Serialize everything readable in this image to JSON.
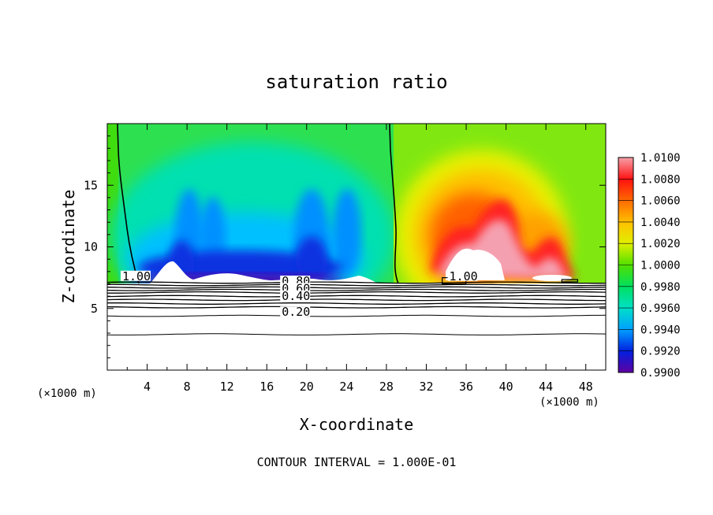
{
  "chart_data": {
    "type": "heatmap",
    "title": "saturation ratio",
    "xlabel": "X-coordinate",
    "ylabel": "Z-coordinate",
    "x_unit_left": "(×1000 m)",
    "x_unit_right": "(×1000 m)",
    "footer": "CONTOUR INTERVAL = 1.000E-01",
    "xlim": [
      0,
      50
    ],
    "ylim": [
      0,
      20
    ],
    "x_ticks": [
      {
        "value": 4,
        "label": "4"
      },
      {
        "value": 8,
        "label": "8"
      },
      {
        "value": 12,
        "label": "12"
      },
      {
        "value": 16,
        "label": "16"
      },
      {
        "value": 20,
        "label": "20"
      },
      {
        "value": 24,
        "label": "24"
      },
      {
        "value": 28,
        "label": "28"
      },
      {
        "value": 32,
        "label": "32"
      },
      {
        "value": 36,
        "label": "36"
      },
      {
        "value": 40,
        "label": "40"
      },
      {
        "value": 44,
        "label": "44"
      },
      {
        "value": 48,
        "label": "48"
      }
    ],
    "y_ticks": [
      {
        "value": 5,
        "label": "5"
      },
      {
        "value": 10,
        "label": "10"
      },
      {
        "value": 15,
        "label": "15"
      }
    ],
    "colorbar": {
      "min": 0.99,
      "max": 1.01,
      "labels": [
        "1.0100",
        "1.0080",
        "1.0060",
        "1.0040",
        "1.0020",
        "1.0000",
        "0.9980",
        "0.9960",
        "0.9940",
        "0.9920",
        "0.9900"
      ],
      "colors": [
        "#f5a0a8",
        "#ff1010",
        "#ff6a00",
        "#ffc000",
        "#e0f000",
        "#50e000",
        "#00e060",
        "#00e0c8",
        "#00a0ff",
        "#0020e0",
        "#6000a0"
      ]
    },
    "contour_labels": [
      {
        "text": "1.00",
        "x": 1.5,
        "y": 7.3
      },
      {
        "text": "0.80",
        "x": 17.5,
        "y": 6.9
      },
      {
        "text": "0.60",
        "x": 17.5,
        "y": 6.3
      },
      {
        "text": "0.40",
        "x": 17.5,
        "y": 5.7
      },
      {
        "text": "0.20",
        "x": 17.5,
        "y": 4.4
      },
      {
        "text": "1.00",
        "x": 34.3,
        "y": 7.3
      }
    ],
    "contour_levels_below_cloud_base": [
      7.1,
      6.9,
      6.7,
      6.5,
      6.3,
      6.0,
      5.7,
      5.4,
      5.1,
      4.4,
      2.9
    ],
    "cloud_base_km": 7.2,
    "saturation_boundaries": [
      {
        "level": 1.0,
        "points": [
          [
            0.8,
            19.7
          ],
          [
            0.9,
            16.0
          ],
          [
            1.5,
            14.0
          ],
          [
            2.1,
            10.5
          ],
          [
            3.0,
            7.4
          ]
        ]
      },
      {
        "level": 1.0,
        "points": [
          [
            28.6,
            19.7
          ],
          [
            28.8,
            17.0
          ],
          [
            29.1,
            14.5
          ],
          [
            29.3,
            11.5
          ],
          [
            29.0,
            8.5
          ],
          [
            29.4,
            7.4
          ]
        ]
      }
    ],
    "subsaturated_region": {
      "x_range": [
        0.8,
        29.3
      ],
      "z_range": [
        7.2,
        20
      ]
    },
    "supersaturated_region": {
      "x_range": [
        29.3,
        50
      ],
      "z_range": [
        7.2,
        20
      ]
    },
    "description_values": {
      "dry_blobs_x_centers": [
        8,
        11,
        14,
        17,
        20,
        23
      ],
      "moist_plume_peaks": [
        {
          "x": 38.5,
          "z": 14
        },
        {
          "x": 41,
          "z": 12
        },
        {
          "x": 45,
          "z": 10
        }
      ]
    }
  }
}
